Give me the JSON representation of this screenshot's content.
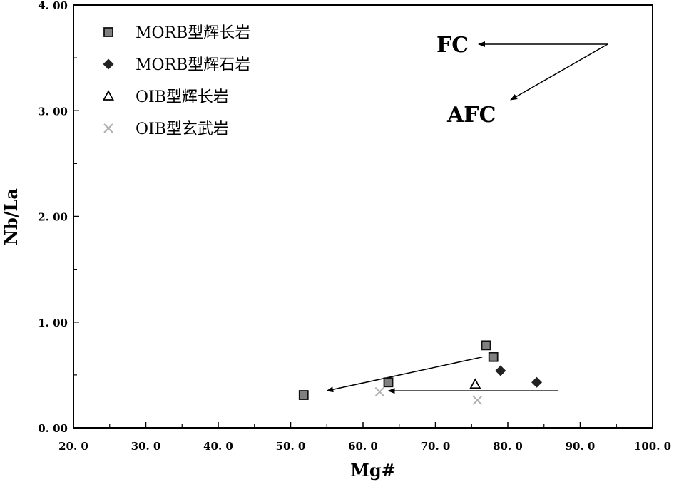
{
  "chart_data": {
    "type": "scatter",
    "xlabel": "Mg#",
    "ylabel": "Nb/La",
    "xlim": [
      20.0,
      100.0
    ],
    "ylim": [
      0.0,
      4.0
    ],
    "x_ticks": [
      "20. 0",
      "30. 0",
      "40. 0",
      "50. 0",
      "60. 0",
      "70. 0",
      "80. 0",
      "90. 0",
      "100. 0"
    ],
    "y_ticks": [
      "0. 00",
      "1. 00",
      "2. 00",
      "3. 00",
      "4. 00"
    ],
    "grid": false,
    "legend_position": "top-left",
    "series": [
      {
        "name": "MORB型辉长岩",
        "marker": "square",
        "color": "#808080",
        "points": [
          [
            51.8,
            0.31
          ],
          [
            63.5,
            0.43
          ],
          [
            77.0,
            0.78
          ],
          [
            78.0,
            0.67
          ]
        ]
      },
      {
        "name": "MORB型辉石岩",
        "marker": "diamond",
        "color": "#222222",
        "points": [
          [
            79.0,
            0.54
          ],
          [
            84.0,
            0.43
          ]
        ]
      },
      {
        "name": "OIB型辉长岩",
        "marker": "triangle-open",
        "color": "#000000",
        "points": [
          [
            75.5,
            0.41
          ]
        ]
      },
      {
        "name": "OIB型玄武岩",
        "marker": "x",
        "color": "#b0b0b0",
        "points": [
          [
            62.3,
            0.34
          ],
          [
            75.8,
            0.26
          ]
        ]
      }
    ],
    "annotations": {
      "fc_label": "FC",
      "afc_label": "AFC"
    },
    "arrows": [
      {
        "from": [
          76.5,
          0.67
        ],
        "to": [
          55.0,
          0.35
        ]
      },
      {
        "from": [
          87.0,
          0.35
        ],
        "to": [
          63.5,
          0.35
        ]
      }
    ]
  }
}
